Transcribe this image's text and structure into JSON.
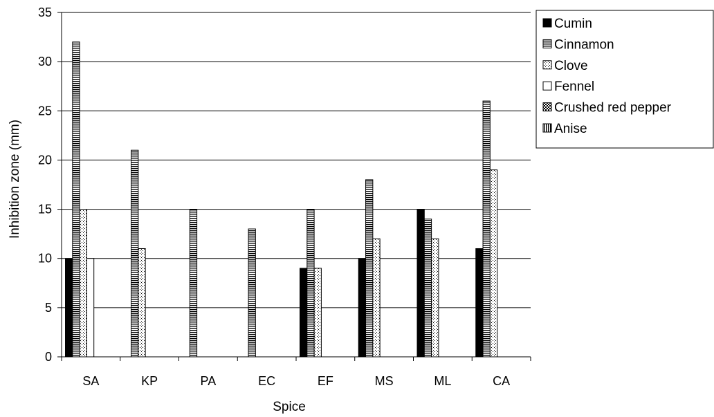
{
  "chart_data": {
    "type": "bar",
    "xlabel": "Spice",
    "ylabel": "Inhibition zone (mm)",
    "ylim": [
      0,
      35
    ],
    "yticks": [
      0,
      5,
      10,
      15,
      20,
      25,
      30,
      35
    ],
    "grid": true,
    "legend_position": "right",
    "categories": [
      "SA",
      "KP",
      "PA",
      "EC",
      "EF",
      "MS",
      "ML",
      "CA"
    ],
    "series": [
      {
        "name": "Cumin",
        "pattern": "solid",
        "values": [
          10,
          0,
          0,
          0,
          9,
          10,
          15,
          11
        ]
      },
      {
        "name": "Cinnamon",
        "pattern": "horizontal-lines",
        "values": [
          32,
          21,
          15,
          13,
          15,
          18,
          14,
          26
        ]
      },
      {
        "name": "Clove",
        "pattern": "dots",
        "values": [
          15,
          11,
          0,
          0,
          9,
          12,
          12,
          19
        ]
      },
      {
        "name": "Fennel",
        "pattern": "empty",
        "values": [
          10,
          0,
          0,
          0,
          0,
          0,
          0,
          0
        ]
      },
      {
        "name": "Crushed red pepper",
        "pattern": "checker",
        "values": [
          0,
          0,
          0,
          0,
          0,
          0,
          0,
          0
        ]
      },
      {
        "name": "Anise",
        "pattern": "vertical-lines",
        "values": [
          0,
          0,
          0,
          0,
          0,
          0,
          0,
          0
        ]
      }
    ]
  }
}
